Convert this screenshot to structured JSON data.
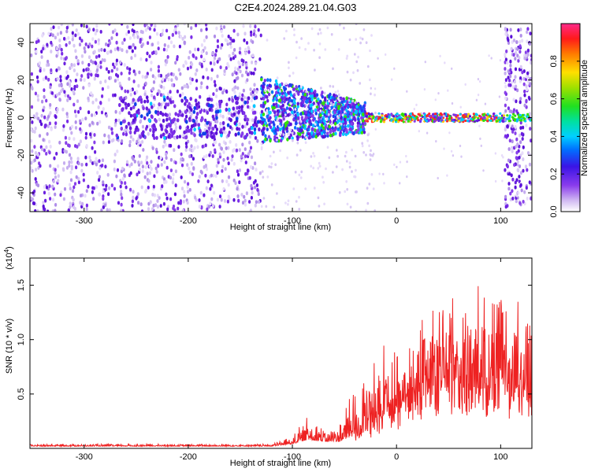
{
  "chart_data": [
    {
      "type": "heatmap",
      "title": "C2E4.2024.289.21.04.G03",
      "xlabel": "Height of straight line (km)",
      "ylabel": "Frequency (Hz)",
      "xlim": [
        -352,
        130
      ],
      "ylim": [
        -50,
        50
      ],
      "x_ticks": [
        -300,
        -200,
        -100,
        0,
        100
      ],
      "y_ticks": [
        -40,
        -20,
        0,
        20,
        40
      ],
      "colorbar": {
        "label": "Normalized spectral amplitude",
        "range": [
          0.0,
          1.0
        ],
        "ticks": [
          0.0,
          0.2,
          0.4,
          0.6,
          0.8
        ],
        "colormap": "rainbow (purple to red)"
      },
      "colors": {
        "low": "#d8c8f4",
        "mid_low": "#6a1fe0",
        "mid": "#00c8ff",
        "mid_high": "#34e000",
        "high": "#ff2a2a"
      },
      "regions": [
        {
          "x_range": [
            -352,
            -130
          ],
          "pattern": "broadband noise spanning full frequency range"
        },
        {
          "x_range": [
            -130,
            -30
          ],
          "pattern": "energy concentrated around 0 Hz, narrowing with height"
        },
        {
          "x_range": [
            -30,
            105
          ],
          "pattern": "narrow high-amplitude band at 0 Hz"
        },
        {
          "x_range": [
            105,
            130
          ],
          "pattern": "broadband noise burst"
        }
      ]
    },
    {
      "type": "line",
      "ylabel": "SNR (10 * v/v)",
      "xlabel": "Height of straight line (km)",
      "y_multiplier": "(x10^4)",
      "xlim": [
        -352,
        130
      ],
      "ylim": [
        0,
        1.75
      ],
      "x_ticks": [
        -300,
        -200,
        -100,
        0,
        100
      ],
      "y_ticks": [
        0.5,
        1.0,
        1.5
      ],
      "y_tick_labels": [
        "0.5",
        "1.0",
        "1.5"
      ],
      "line_color": "#ee2222",
      "envelope": [
        {
          "x": -352,
          "base": 0.02,
          "amp": 0.02
        },
        {
          "x": -120,
          "base": 0.02,
          "amp": 0.02
        },
        {
          "x": -100,
          "base": 0.04,
          "amp": 0.08
        },
        {
          "x": -85,
          "base": 0.08,
          "amp": 0.22
        },
        {
          "x": -70,
          "base": 0.06,
          "amp": 0.12
        },
        {
          "x": -55,
          "base": 0.06,
          "amp": 0.18
        },
        {
          "x": -40,
          "base": 0.12,
          "amp": 0.45
        },
        {
          "x": -20,
          "base": 0.25,
          "amp": 0.7
        },
        {
          "x": 0,
          "base": 0.4,
          "amp": 0.65
        },
        {
          "x": 20,
          "base": 0.6,
          "amp": 0.7
        },
        {
          "x": 50,
          "base": 0.7,
          "amp": 0.8
        },
        {
          "x": 80,
          "base": 0.65,
          "amp": 0.9
        },
        {
          "x": 110,
          "base": 0.6,
          "amp": 0.95
        },
        {
          "x": 130,
          "base": 0.55,
          "amp": 0.9
        }
      ]
    }
  ]
}
